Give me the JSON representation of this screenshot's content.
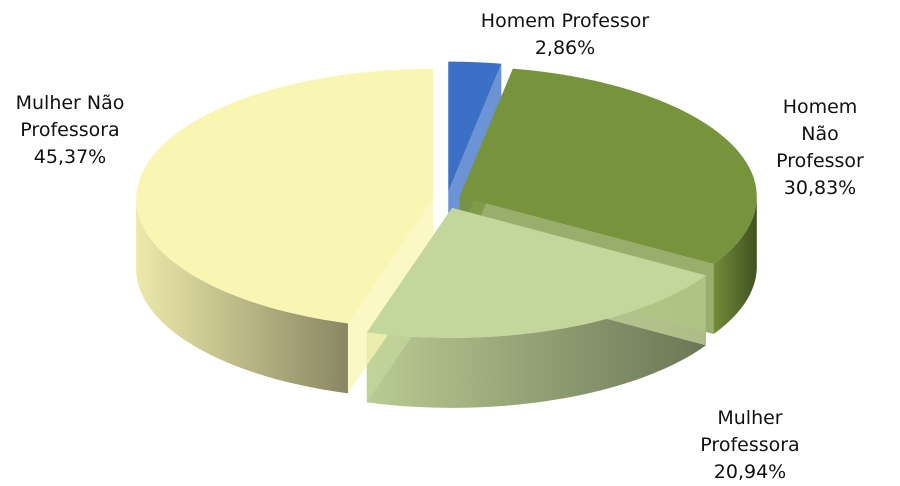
{
  "chart_data": {
    "type": "pie",
    "categories": [
      "Homem Professor",
      "Homem Não Professor",
      "Mulher Professora",
      "Mulher Não Professora"
    ],
    "values": [
      2.86,
      30.83,
      20.94,
      45.37
    ],
    "value_labels": [
      "2,86%",
      "30,83%",
      "20,94%",
      "45,37%"
    ],
    "colors": [
      "#3b70c6",
      "#77933c",
      "#c3d69b",
      "#f9f5b3"
    ]
  }
}
